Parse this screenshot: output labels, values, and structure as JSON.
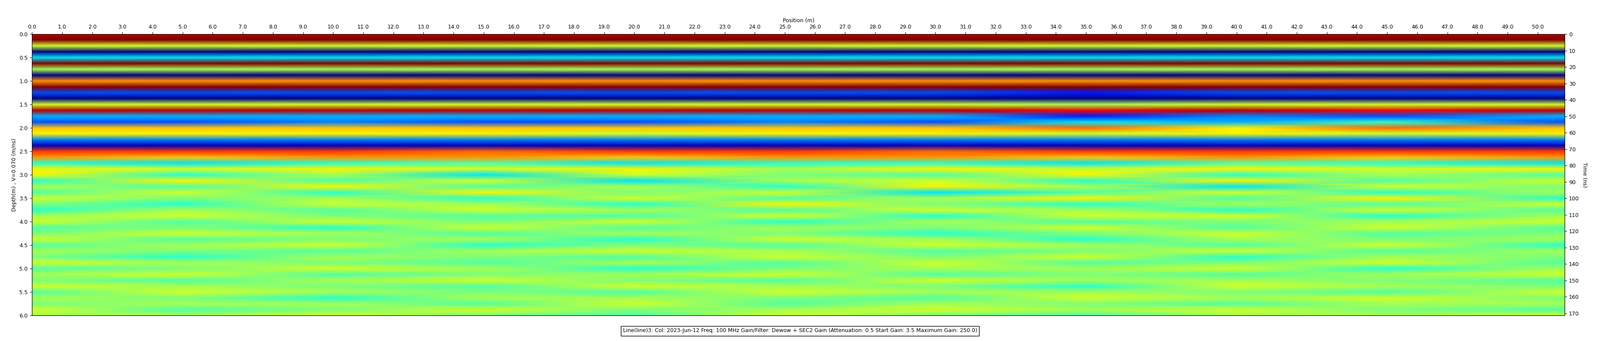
{
  "chart_data": {
    "type": "heatmap",
    "xlabel": "Position (m)",
    "ylabel": "Depth(m) , V=0.070 (m/ns)",
    "y2label": "Time (ns)",
    "caption": "Line(line)3: Col: 2023-Jun-12 Freq: 100 MHz Gain/Filter: Dewow + SEC2 Gain (Attenuation: 0.5 Start Gain: 3.5 Maximum Gain: 250.0)",
    "xlim": [
      0,
      50.9
    ],
    "xticks": [
      0.0,
      1.0,
      2.0,
      3.0,
      4.0,
      5.0,
      6.0,
      7.0,
      8.0,
      9.0,
      10.0,
      11.0,
      12.0,
      13.0,
      14.0,
      15.0,
      16.0,
      17.0,
      18.0,
      19.0,
      20.0,
      21.0,
      22.0,
      23.0,
      24.0,
      25.0,
      26.0,
      27.0,
      28.0,
      29.0,
      30.0,
      31.0,
      32.0,
      33.0,
      34.0,
      35.0,
      36.0,
      37.0,
      38.0,
      39.0,
      40.0,
      41.0,
      42.0,
      43.0,
      44.0,
      45.0,
      46.0,
      47.0,
      48.0,
      49.0,
      50.0
    ],
    "ylim": [
      0,
      6.0
    ],
    "yticks": [
      0.0,
      0.5,
      1.0,
      1.5,
      2.0,
      2.5,
      3.0,
      3.5,
      4.0,
      4.5,
      5.0,
      5.5,
      6.0
    ],
    "y2lim": [
      0,
      171.4
    ],
    "y2ticks": [
      0,
      10,
      20,
      30,
      40,
      50,
      60,
      70,
      80,
      90,
      100,
      110,
      120,
      130,
      140,
      150,
      160,
      170
    ],
    "clim": [
      -1,
      1
    ],
    "x": [
      0,
      5,
      10,
      15,
      20,
      25,
      30,
      35,
      40,
      45,
      50.9
    ],
    "y": [
      0.0,
      0.125,
      0.25,
      0.375,
      0.5,
      0.625,
      0.75,
      0.875,
      1.0,
      1.125,
      1.25,
      1.375,
      1.5,
      1.625,
      1.75,
      1.875,
      2.0,
      2.125,
      2.25,
      2.375,
      2.5,
      2.625,
      2.75,
      2.875,
      3.0,
      3.125,
      3.25,
      3.375,
      3.5,
      3.625,
      3.75,
      3.875,
      4.0,
      4.125,
      4.25,
      4.375,
      4.5,
      4.625,
      4.75,
      4.875,
      5.0,
      5.125,
      5.25,
      5.375,
      5.5,
      5.625,
      5.75,
      5.875,
      6.0
    ],
    "cells": [
      [
        0.9,
        0.9,
        0.9,
        0.9,
        0.9,
        0.9,
        0.9,
        0.9,
        0.9,
        0.9,
        0.9
      ],
      [
        1.0,
        1.0,
        1.0,
        1.0,
        1.0,
        1.0,
        1.0,
        1.0,
        1.0,
        1.0,
        1.0
      ],
      [
        0.2,
        0.2,
        0.2,
        0.2,
        0.2,
        0.2,
        0.2,
        0.2,
        0.2,
        0.2,
        0.2
      ],
      [
        -1.0,
        -1.0,
        -1.0,
        -1.0,
        -1.0,
        -1.0,
        -1.0,
        -1.0,
        -1.0,
        -1.0,
        -1.0
      ],
      [
        -0.3,
        -0.3,
        -0.3,
        -0.3,
        -0.3,
        -0.3,
        -0.3,
        -0.3,
        -0.3,
        -0.3,
        -0.3
      ],
      [
        1.0,
        1.0,
        1.0,
        1.0,
        1.0,
        1.0,
        1.0,
        1.0,
        1.0,
        1.0,
        1.0
      ],
      [
        0.1,
        0.1,
        0.1,
        0.1,
        0.1,
        0.1,
        0.1,
        0.1,
        0.1,
        0.1,
        0.1
      ],
      [
        -1.0,
        -1.0,
        -1.0,
        -1.0,
        -1.0,
        -1.0,
        -1.0,
        -1.0,
        -1.0,
        -1.0,
        -1.0
      ],
      [
        0.5,
        0.5,
        0.5,
        0.5,
        0.5,
        0.5,
        0.5,
        0.5,
        0.5,
        0.5,
        0.5
      ],
      [
        1.0,
        1.0,
        1.0,
        1.0,
        1.0,
        1.0,
        1.0,
        1.0,
        1.0,
        1.0,
        1.0
      ],
      [
        -0.6,
        -0.6,
        -0.6,
        -0.6,
        -0.6,
        -0.6,
        -0.6,
        -0.7,
        -0.6,
        -0.6,
        -0.6
      ],
      [
        -1.0,
        -1.0,
        -1.0,
        -1.0,
        -1.0,
        -1.0,
        -1.0,
        -1.0,
        -1.0,
        -1.0,
        -1.0
      ],
      [
        0.2,
        0.2,
        0.2,
        0.2,
        0.2,
        0.2,
        0.2,
        0.1,
        0.2,
        0.2,
        0.2
      ],
      [
        0.9,
        0.9,
        0.9,
        0.9,
        0.9,
        0.9,
        0.9,
        0.8,
        0.9,
        0.8,
        0.9
      ],
      [
        -0.4,
        -0.4,
        -0.4,
        -0.4,
        -0.4,
        -0.4,
        -0.4,
        -0.7,
        -0.5,
        -0.6,
        -0.4
      ],
      [
        -0.6,
        -0.6,
        -0.5,
        -0.6,
        -0.6,
        -0.5,
        -0.6,
        -0.3,
        -0.4,
        -0.2,
        -0.6
      ],
      [
        0.4,
        0.4,
        0.4,
        0.4,
        0.4,
        0.4,
        0.4,
        0.6,
        0.3,
        0.6,
        0.4
      ],
      [
        0.3,
        0.3,
        0.3,
        0.3,
        0.2,
        0.3,
        0.3,
        0.2,
        0.3,
        0.2,
        0.3
      ],
      [
        -0.5,
        -0.5,
        -0.5,
        -0.5,
        -0.5,
        -0.5,
        -0.5,
        -0.5,
        -0.5,
        -0.5,
        -0.5
      ],
      [
        -0.9,
        -0.9,
        -0.9,
        -0.9,
        -0.9,
        -0.9,
        -0.9,
        -0.9,
        -0.9,
        -0.9,
        -0.9
      ],
      [
        0.7,
        0.7,
        0.7,
        0.6,
        0.7,
        0.7,
        0.6,
        0.7,
        0.7,
        0.7,
        0.7
      ],
      [
        0.5,
        0.4,
        0.5,
        0.5,
        0.4,
        0.5,
        0.5,
        0.4,
        0.5,
        0.4,
        0.5
      ],
      [
        -0.2,
        -0.3,
        -0.2,
        -0.1,
        -0.3,
        -0.2,
        -0.2,
        -0.3,
        -0.1,
        -0.2,
        -0.3
      ],
      [
        0.3,
        0.2,
        0.3,
        0.2,
        0.3,
        0.1,
        0.3,
        0.2,
        0.3,
        0.2,
        0.3
      ],
      [
        0.3,
        -0.2,
        0.1,
        -0.3,
        0.2,
        0.0,
        -0.1,
        0.3,
        -0.2,
        0.1,
        -0.1
      ],
      [
        -0.2,
        0.3,
        -0.1,
        0.2,
        -0.3,
        0.1,
        0.2,
        -0.2,
        0.3,
        -0.1,
        0.2
      ],
      [
        0.1,
        -0.1,
        0.3,
        -0.1,
        0.1,
        -0.2,
        0.3,
        0.1,
        -0.3,
        0.2,
        0.0
      ],
      [
        -0.1,
        0.2,
        -0.2,
        0.3,
        0.0,
        0.2,
        -0.3,
        -0.1,
        0.2,
        -0.2,
        0.1
      ],
      [
        0.2,
        0.0,
        0.1,
        -0.2,
        0.2,
        -0.1,
        0.1,
        0.3,
        -0.1,
        0.3,
        -0.2
      ],
      [
        0.0,
        -0.2,
        0.2,
        0.1,
        -0.2,
        0.3,
        0.0,
        -0.2,
        0.1,
        -0.1,
        0.2
      ],
      [
        -0.2,
        0.1,
        -0.1,
        0.2,
        0.1,
        -0.1,
        0.2,
        0.1,
        -0.2,
        0.2,
        -0.1
      ],
      [
        0.1,
        0.2,
        0.0,
        -0.1,
        -0.1,
        0.2,
        -0.2,
        0.2,
        0.2,
        -0.2,
        0.1
      ],
      [
        0.2,
        -0.1,
        0.2,
        0.0,
        0.2,
        -0.2,
        0.1,
        -0.1,
        0.0,
        0.1,
        0.2
      ],
      [
        -0.1,
        0.0,
        -0.2,
        0.2,
        -0.1,
        0.1,
        0.0,
        0.2,
        -0.1,
        0.2,
        -0.1
      ],
      [
        0.0,
        0.2,
        0.1,
        -0.1,
        0.1,
        0.0,
        -0.2,
        0.0,
        0.2,
        -0.1,
        0.0
      ],
      [
        0.2,
        -0.1,
        0.0,
        0.1,
        -0.2,
        0.2,
        0.1,
        -0.2,
        0.1,
        0.0,
        0.1
      ],
      [
        -0.1,
        0.1,
        0.2,
        -0.2,
        0.0,
        -0.1,
        0.2,
        0.1,
        -0.1,
        0.2,
        -0.2
      ],
      [
        0.1,
        0.0,
        -0.1,
        0.1,
        0.2,
        0.1,
        -0.1,
        0.0,
        0.2,
        -0.1,
        0.1
      ],
      [
        0.0,
        -0.2,
        0.1,
        0.0,
        -0.1,
        0.2,
        0.0,
        0.2,
        -0.2,
        0.1,
        0.0
      ],
      [
        0.2,
        0.1,
        0.0,
        -0.1,
        0.1,
        -0.1,
        0.2,
        -0.1,
        0.0,
        0.2,
        -0.1
      ],
      [
        -0.1,
        0.0,
        0.2,
        0.1,
        -0.2,
        0.0,
        0.1,
        0.1,
        0.2,
        -0.2,
        0.1
      ],
      [
        0.1,
        0.2,
        -0.1,
        0.0,
        0.1,
        0.2,
        -0.1,
        0.0,
        -0.1,
        0.1,
        0.2
      ],
      [
        0.0,
        -0.1,
        0.1,
        0.2,
        0.0,
        -0.1,
        0.2,
        0.1,
        0.1,
        0.0,
        -0.1
      ],
      [
        0.2,
        0.1,
        0.0,
        -0.1,
        0.2,
        0.1,
        0.0,
        -0.2,
        0.2,
        0.1,
        0.0
      ],
      [
        -0.1,
        0.2,
        0.1,
        0.0,
        -0.1,
        0.2,
        0.1,
        0.1,
        0.0,
        -0.1,
        0.2
      ],
      [
        0.1,
        0.0,
        -0.2,
        0.1,
        0.1,
        0.0,
        -0.1,
        0.2,
        0.1,
        0.2,
        0.0
      ],
      [
        0.0,
        0.1,
        0.1,
        -0.1,
        0.2,
        -0.1,
        0.1,
        0.0,
        -0.1,
        0.1,
        0.1
      ],
      [
        0.2,
        -0.1,
        0.0,
        0.2,
        0.0,
        0.1,
        0.2,
        0.1,
        0.2,
        0.0,
        -0.1
      ],
      [
        0.1,
        0.1,
        0.2,
        0.0,
        -0.1,
        0.2,
        0.0,
        -0.1,
        0.1,
        0.1,
        0.2
      ]
    ]
  }
}
